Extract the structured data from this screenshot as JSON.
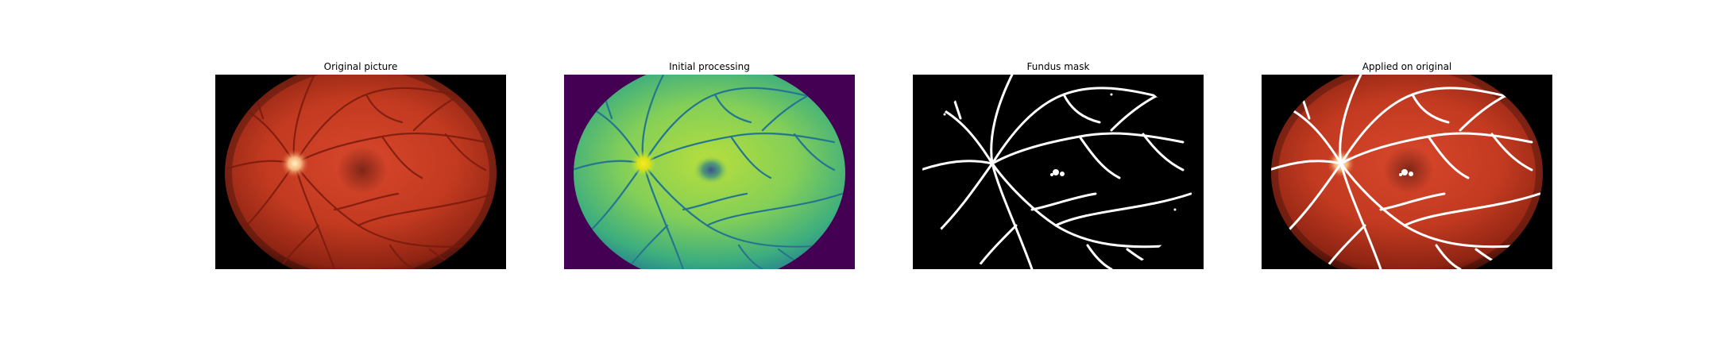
{
  "panels": [
    {
      "title": "Original picture",
      "kind": "original"
    },
    {
      "title": "Initial processing",
      "kind": "processed"
    },
    {
      "title": "Fundus mask",
      "kind": "mask"
    },
    {
      "title": "Applied on original",
      "kind": "applied"
    }
  ]
}
